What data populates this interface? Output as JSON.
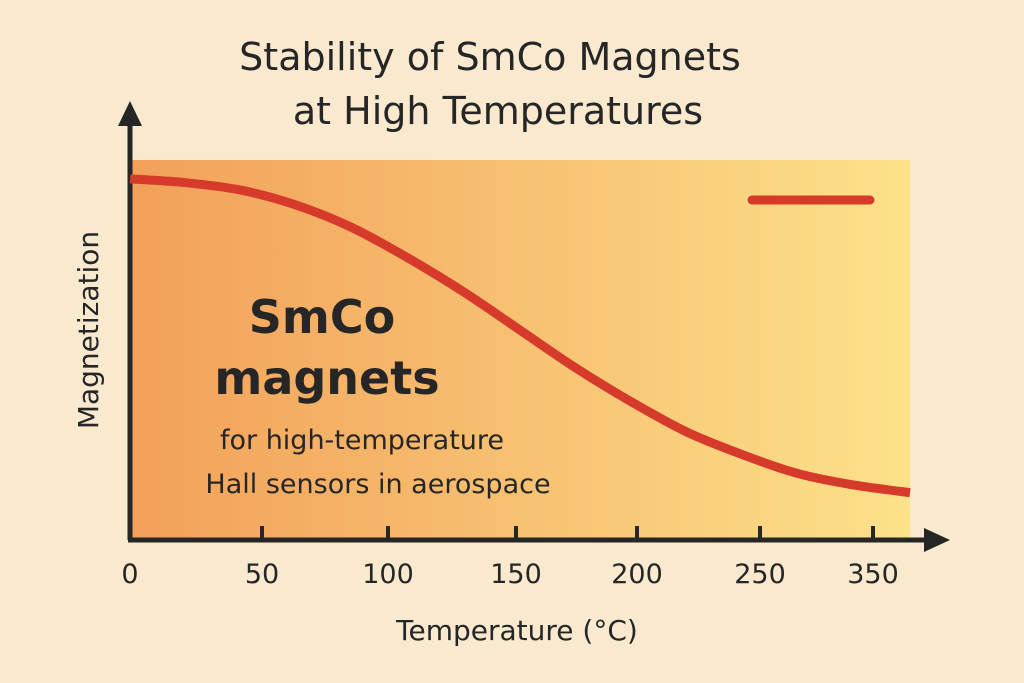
{
  "chart_data": {
    "type": "line",
    "title": [
      "Stability of SmCo Magnets",
      "at High Temperatures"
    ],
    "xlabel": "Temperature (°C)",
    "ylabel": "Magnetization",
    "x_ticks": [
      "0",
      "50",
      "100",
      "150",
      "200",
      "250",
      "350"
    ],
    "xlim": [
      0,
      350
    ],
    "ylim": [
      0,
      1
    ],
    "grid": false,
    "series": [
      {
        "color": "#d63a2a",
        "x": [
          0,
          25,
          50,
          75,
          100,
          125,
          150,
          175,
          200,
          225,
          250,
          275,
          300,
          325,
          350
        ],
        "y": [
          0.95,
          0.94,
          0.92,
          0.88,
          0.82,
          0.74,
          0.65,
          0.55,
          0.45,
          0.36,
          0.28,
          0.22,
          0.17,
          0.14,
          0.12
        ]
      }
    ],
    "legend": {
      "placement": "top-right",
      "entries": [
        {
          "color": "#d63a2a"
        }
      ]
    },
    "annotation": {
      "main": [
        "SmCo",
        "magnets"
      ],
      "sub": [
        "for high-temperature",
        "Hall sensors in aerospace"
      ]
    },
    "colors": {
      "background": "#f8e9cf",
      "plot_gradient_start": "#f2a05a",
      "plot_gradient_end": "#fce28a",
      "axis": "#262626",
      "line": "#d63a2a"
    }
  }
}
